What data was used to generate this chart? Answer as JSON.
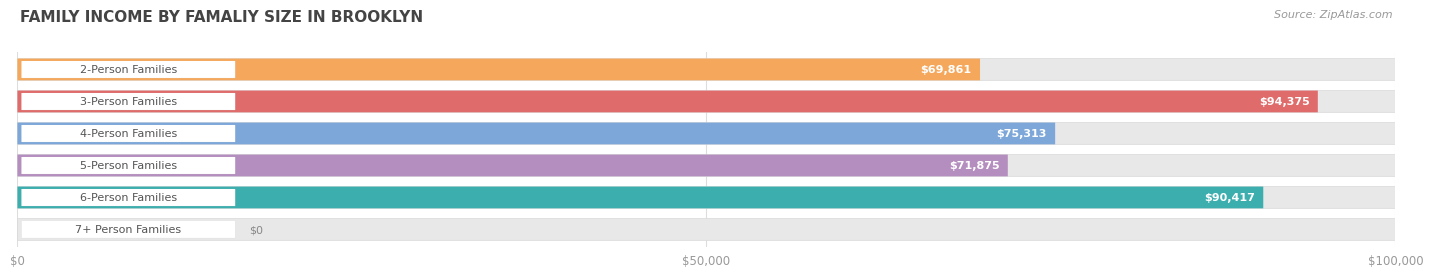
{
  "title": "FAMILY INCOME BY FAMALIY SIZE IN BROOKLYN",
  "source": "Source: ZipAtlas.com",
  "categories": [
    "2-Person Families",
    "3-Person Families",
    "4-Person Families",
    "5-Person Families",
    "6-Person Families",
    "7+ Person Families"
  ],
  "values": [
    69861,
    94375,
    75313,
    71875,
    90417,
    0
  ],
  "bar_colors": [
    "#F5A85C",
    "#E06B6B",
    "#7DA7D9",
    "#B48EBE",
    "#3DAEAE",
    "#C5CAE9"
  ],
  "max_value": 100000,
  "xlabel_ticks": [
    0,
    50000,
    100000
  ],
  "xlabel_labels": [
    "$0",
    "$50,000",
    "$100,000"
  ],
  "title_fontsize": 11,
  "source_fontsize": 8,
  "label_fontsize": 8,
  "value_fontsize": 8,
  "bg_color": "#ffffff",
  "bar_track_color": "#e8e8e8",
  "bar_track_edge": "#d8d8d8",
  "label_bg_color": "#ffffff",
  "value_color": "#ffffff",
  "grid_color": "#dddddd"
}
